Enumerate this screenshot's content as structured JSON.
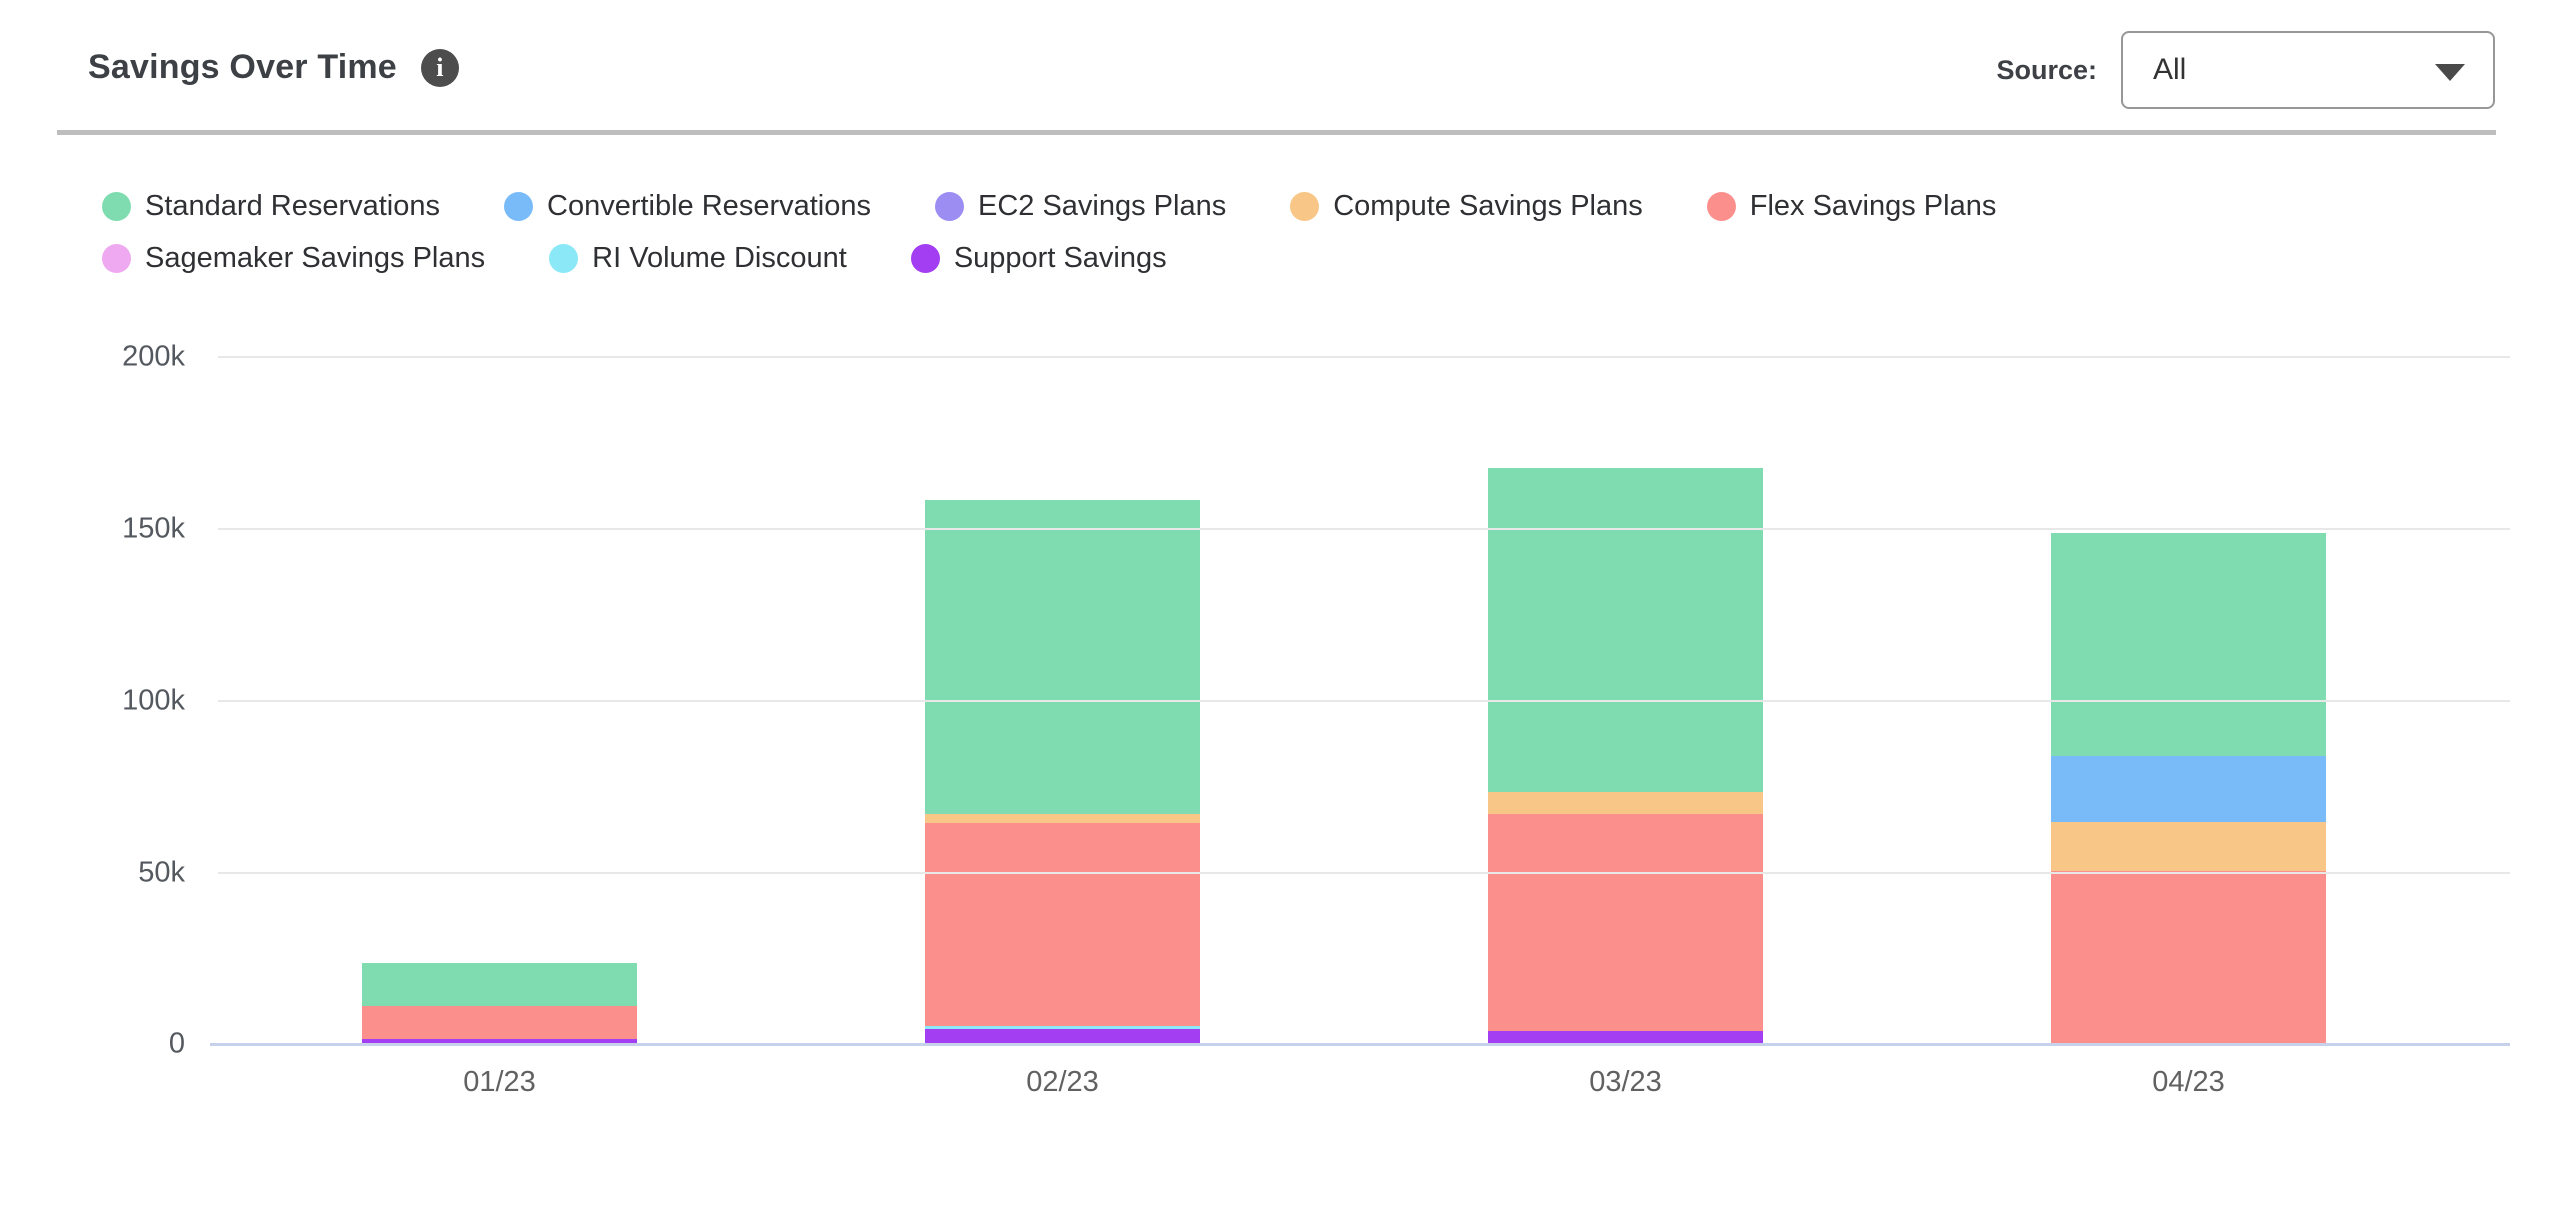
{
  "header": {
    "title": "Savings Over Time",
    "info_glyph": "i",
    "source_label": "Source:",
    "source_value": "All"
  },
  "chart_data": {
    "type": "bar",
    "stacked": true,
    "title": "Savings Over Time",
    "categories": [
      "01/23",
      "02/23",
      "03/23",
      "04/23"
    ],
    "series": [
      {
        "name": "Standard Reservations",
        "color": "#7edcb0",
        "values": [
          12400,
          91500,
          94200,
          64800
        ]
      },
      {
        "name": "Convertible Reservations",
        "color": "#79bbf9",
        "values": [
          0,
          0,
          0,
          19400
        ]
      },
      {
        "name": "EC2 Savings Plans",
        "color": "#9c8df2",
        "values": [
          0,
          0,
          0,
          0
        ]
      },
      {
        "name": "Compute Savings Plans",
        "color": "#f8c687",
        "values": [
          0,
          2500,
          6500,
          14200
        ]
      },
      {
        "name": "Flex Savings Plans",
        "color": "#fb8f8b",
        "values": [
          9700,
          59000,
          63100,
          50000
        ]
      },
      {
        "name": "Sagemaker Savings Plans",
        "color": "#efa9f0",
        "values": [
          0,
          0,
          0,
          0
        ]
      },
      {
        "name": "RI Volume Discount",
        "color": "#8ae8f7",
        "values": [
          0,
          1000,
          0,
          0
        ]
      },
      {
        "name": "Support Savings",
        "color": "#a33ef2",
        "values": [
          1200,
          4100,
          3500,
          0
        ]
      }
    ],
    "stack_order_bottom_to_top": [
      "Support Savings",
      "RI Volume Discount",
      "Sagemaker Savings Plans",
      "Flex Savings Plans",
      "Compute Savings Plans",
      "EC2 Savings Plans",
      "Convertible Reservations",
      "Standard Reservations"
    ],
    "totals": [
      23300,
      158100,
      167300,
      148400
    ],
    "ylim": [
      0,
      200000
    ],
    "ytick_labels": [
      "200k",
      "150k",
      "100k",
      "50k",
      "0"
    ],
    "ytick_values": [
      200000,
      150000,
      100000,
      50000,
      0
    ],
    "grid": true,
    "legend_position": "top",
    "legend_rows": [
      5,
      3
    ],
    "gridline_color": "#e8e8e8",
    "axis_line_color": "#c8d1eb"
  }
}
